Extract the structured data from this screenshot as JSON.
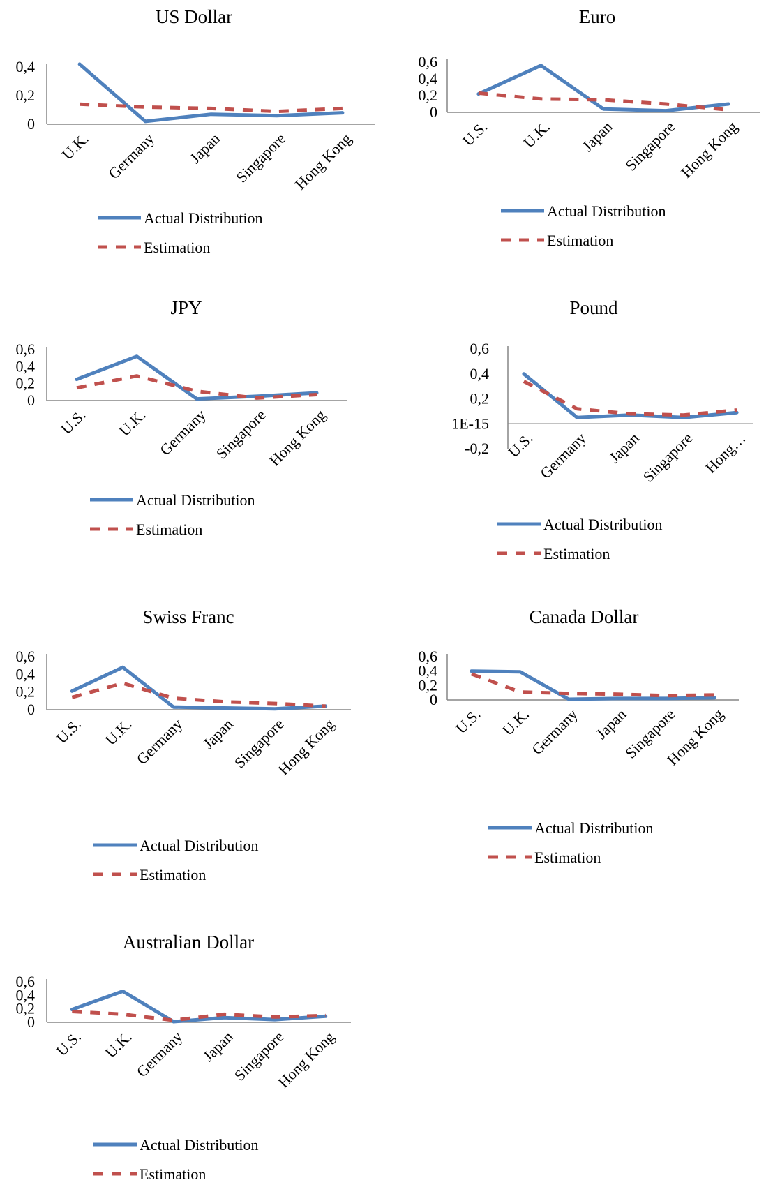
{
  "colors": {
    "actual": "#4f81bd",
    "estimation": "#c0504d",
    "axis": "#868686"
  },
  "chart_data": [
    {
      "type": "line",
      "title": "US Dollar",
      "categories": [
        "U.K.",
        "Germany",
        "Japan",
        "Singapore",
        "Hong Kong"
      ],
      "ylim": [
        0,
        0.4
      ],
      "yticks": [
        "0,4",
        "0,2",
        "0"
      ],
      "legend_placement": "bottom",
      "series": [
        {
          "name": "Actual Distribution",
          "style": "solid",
          "values": [
            0.42,
            0.02,
            0.07,
            0.06,
            0.08
          ]
        },
        {
          "name": "Estimation",
          "style": "dashed",
          "values": [
            0.14,
            0.12,
            0.11,
            0.09,
            0.11
          ]
        }
      ]
    },
    {
      "type": "line",
      "title": "Euro",
      "categories": [
        "U.S.",
        "U.K.",
        "Japan",
        "Singapore",
        "Hong Kong"
      ],
      "ylim": [
        0,
        0.6
      ],
      "yticks": [
        "0,6",
        "0,4",
        "0,2",
        "0"
      ],
      "legend_placement": "bottom",
      "series": [
        {
          "name": "Actual Distribution",
          "style": "solid",
          "values": [
            0.22,
            0.56,
            0.04,
            0.02,
            0.1
          ]
        },
        {
          "name": "Estimation",
          "style": "dashed",
          "values": [
            0.23,
            0.16,
            0.15,
            0.1,
            0.03
          ]
        }
      ]
    },
    {
      "type": "line",
      "title": "JPY",
      "categories": [
        "U.S.",
        "U.K.",
        "Germany",
        "Singapore",
        "Hong Kong"
      ],
      "ylim": [
        0,
        0.6
      ],
      "yticks": [
        "0,6",
        "0,4",
        "0,2",
        "0"
      ],
      "legend_placement": "bottom",
      "series": [
        {
          "name": "Actual Distribution",
          "style": "solid",
          "values": [
            0.25,
            0.52,
            0.02,
            0.05,
            0.09
          ]
        },
        {
          "name": "Estimation",
          "style": "dashed",
          "values": [
            0.15,
            0.29,
            0.11,
            0.03,
            0.07
          ]
        }
      ]
    },
    {
      "type": "line",
      "title": "Pound",
      "categories": [
        "U.S.",
        "Germany",
        "Japan",
        "Singapore",
        "Hong…"
      ],
      "ylim": [
        -0.2,
        0.6
      ],
      "yticks": [
        "0,6",
        "0,4",
        "0,2",
        "1E-15",
        "-0,2"
      ],
      "legend_placement": "bottom",
      "series": [
        {
          "name": "Actual Distribution",
          "style": "solid",
          "values": [
            0.4,
            0.05,
            0.07,
            0.05,
            0.09
          ]
        },
        {
          "name": "Estimation",
          "style": "dashed",
          "values": [
            0.34,
            0.12,
            0.08,
            0.07,
            0.11
          ]
        }
      ]
    },
    {
      "type": "line",
      "title": "Swiss Franc",
      "categories": [
        "U.S.",
        "U.K.",
        "Germany",
        "Japan",
        "Singapore",
        "Hong Kong"
      ],
      "ylim": [
        0,
        0.6
      ],
      "yticks": [
        "0,6",
        "0,4",
        "0,2",
        "0"
      ],
      "legend_placement": "bottom",
      "series": [
        {
          "name": "Actual Distribution",
          "style": "solid",
          "values": [
            0.21,
            0.48,
            0.03,
            0.02,
            0.01,
            0.04
          ]
        },
        {
          "name": "Estimation",
          "style": "dashed",
          "values": [
            0.14,
            0.3,
            0.13,
            0.09,
            0.07,
            0.04
          ]
        }
      ]
    },
    {
      "type": "line",
      "title": "Canada Dollar",
      "categories": [
        "U.S.",
        "U.K.",
        "Germany",
        "Japan",
        "Singapore",
        "Hong Kong"
      ],
      "ylim": [
        0,
        0.6
      ],
      "yticks": [
        "0,6",
        "0,4",
        "0,2",
        "0"
      ],
      "legend_placement": "bottom",
      "series": [
        {
          "name": "Actual Distribution",
          "style": "solid",
          "values": [
            0.4,
            0.39,
            0.01,
            0.02,
            0.02,
            0.03
          ]
        },
        {
          "name": "Estimation",
          "style": "dashed",
          "values": [
            0.36,
            0.11,
            0.09,
            0.08,
            0.06,
            0.07
          ]
        }
      ]
    },
    {
      "type": "line",
      "title": "Australian Dollar",
      "categories": [
        "U.S.",
        "U.K.",
        "Germany",
        "Japan",
        "Singapore",
        "Hong Kong"
      ],
      "ylim": [
        0,
        0.6
      ],
      "yticks": [
        "0,6",
        "0,4",
        "0,2",
        "0"
      ],
      "legend_placement": "bottom",
      "series": [
        {
          "name": "Actual Distribution",
          "style": "solid",
          "values": [
            0.19,
            0.46,
            0.01,
            0.07,
            0.04,
            0.09
          ]
        },
        {
          "name": "Estimation",
          "style": "dashed",
          "values": [
            0.16,
            0.12,
            0.03,
            0.12,
            0.08,
            0.1
          ]
        }
      ]
    }
  ]
}
